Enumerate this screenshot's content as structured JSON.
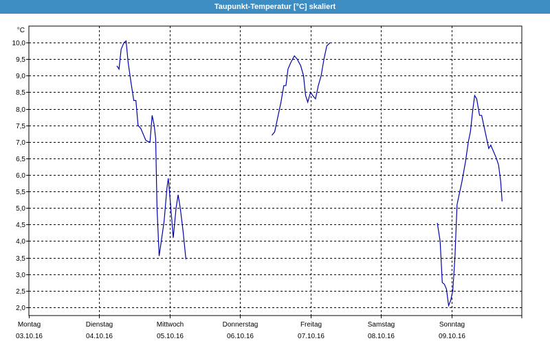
{
  "window": {
    "title": "Taupunkt-Temperatur [°C] skaliert"
  },
  "chart_data": {
    "type": "line",
    "y_unit": "°C",
    "ylim": [
      1.75,
      10.5
    ],
    "yticks": [
      2.0,
      2.5,
      3.0,
      3.5,
      4.0,
      4.5,
      5.0,
      5.5,
      6.0,
      6.5,
      7.0,
      7.5,
      8.0,
      8.5,
      9.0,
      9.5,
      10.0
    ],
    "ytick_labels": [
      "2,0",
      "2,5",
      "3,0",
      "3,5",
      "4,0",
      "4,5",
      "5,0",
      "5,5",
      "6,0",
      "6,5",
      "7,0",
      "7,5",
      "8,0",
      "8,5",
      "9,0",
      "9,5",
      "10,0"
    ],
    "xlim": [
      0,
      7
    ],
    "days": [
      {
        "name": "Montag",
        "date": "03.10.16"
      },
      {
        "name": "Dienstag",
        "date": "04.10.16"
      },
      {
        "name": "Mittwoch",
        "date": "05.10.16"
      },
      {
        "name": "Donnerstag",
        "date": "06.10.16"
      },
      {
        "name": "Freitag",
        "date": "07.10.16"
      },
      {
        "name": "Samstag",
        "date": "08.10.16"
      },
      {
        "name": "Sonntag",
        "date": "09.10.16"
      }
    ],
    "grid": true,
    "color": "#0000aa",
    "segments": [
      [
        [
          1.25,
          9.3
        ],
        [
          1.28,
          9.2
        ],
        [
          1.31,
          9.8
        ],
        [
          1.35,
          10.0
        ],
        [
          1.38,
          10.05
        ],
        [
          1.41,
          9.4
        ],
        [
          1.45,
          8.8
        ],
        [
          1.49,
          8.25
        ],
        [
          1.52,
          8.25
        ],
        [
          1.55,
          7.5
        ],
        [
          1.59,
          7.4
        ],
        [
          1.63,
          7.2
        ],
        [
          1.66,
          7.05
        ],
        [
          1.7,
          7.0
        ],
        [
          1.72,
          7.0
        ],
        [
          1.75,
          7.8
        ],
        [
          1.78,
          7.5
        ],
        [
          1.8,
          7.1
        ],
        [
          1.82,
          5.0
        ],
        [
          1.85,
          3.55
        ],
        [
          1.88,
          4.0
        ],
        [
          1.92,
          4.6
        ],
        [
          1.96,
          5.6
        ],
        [
          1.98,
          5.9
        ],
        [
          2.0,
          5.4
        ],
        [
          2.05,
          4.1
        ],
        [
          2.09,
          5.0
        ],
        [
          2.12,
          5.4
        ],
        [
          2.15,
          5.0
        ],
        [
          2.19,
          4.3
        ],
        [
          2.23,
          3.45
        ]
      ],
      [
        [
          3.45,
          7.2
        ],
        [
          3.49,
          7.3
        ],
        [
          3.53,
          7.7
        ],
        [
          3.58,
          8.2
        ],
        [
          3.62,
          8.7
        ],
        [
          3.65,
          8.7
        ],
        [
          3.68,
          9.2
        ],
        [
          3.72,
          9.4
        ],
        [
          3.77,
          9.6
        ],
        [
          3.81,
          9.5
        ],
        [
          3.86,
          9.3
        ],
        [
          3.9,
          9.0
        ],
        [
          3.93,
          8.4
        ],
        [
          3.96,
          8.2
        ],
        [
          4.0,
          8.5
        ],
        [
          4.03,
          8.4
        ],
        [
          4.07,
          8.3
        ],
        [
          4.11,
          8.7
        ],
        [
          4.15,
          9.0
        ],
        [
          4.19,
          9.5
        ],
        [
          4.23,
          9.9
        ],
        [
          4.28,
          10.0
        ]
      ],
      [
        [
          5.8,
          4.55
        ],
        [
          5.84,
          4.0
        ],
        [
          5.87,
          2.75
        ],
        [
          5.9,
          2.7
        ],
        [
          5.93,
          2.55
        ],
        [
          5.96,
          2.05
        ],
        [
          5.99,
          2.2
        ],
        [
          6.02,
          2.5
        ],
        [
          6.05,
          3.5
        ],
        [
          6.08,
          5.1
        ],
        [
          6.11,
          5.4
        ],
        [
          6.15,
          5.8
        ],
        [
          6.2,
          6.4
        ],
        [
          6.24,
          7.0
        ],
        [
          6.27,
          7.3
        ],
        [
          6.3,
          7.9
        ],
        [
          6.33,
          8.4
        ],
        [
          6.36,
          8.3
        ],
        [
          6.4,
          7.8
        ],
        [
          6.43,
          7.8
        ],
        [
          6.46,
          7.5
        ],
        [
          6.5,
          7.1
        ],
        [
          6.53,
          6.8
        ],
        [
          6.56,
          6.9
        ],
        [
          6.6,
          6.7
        ],
        [
          6.64,
          6.5
        ],
        [
          6.67,
          6.3
        ],
        [
          6.7,
          5.8
        ],
        [
          6.72,
          5.2
        ]
      ]
    ]
  }
}
